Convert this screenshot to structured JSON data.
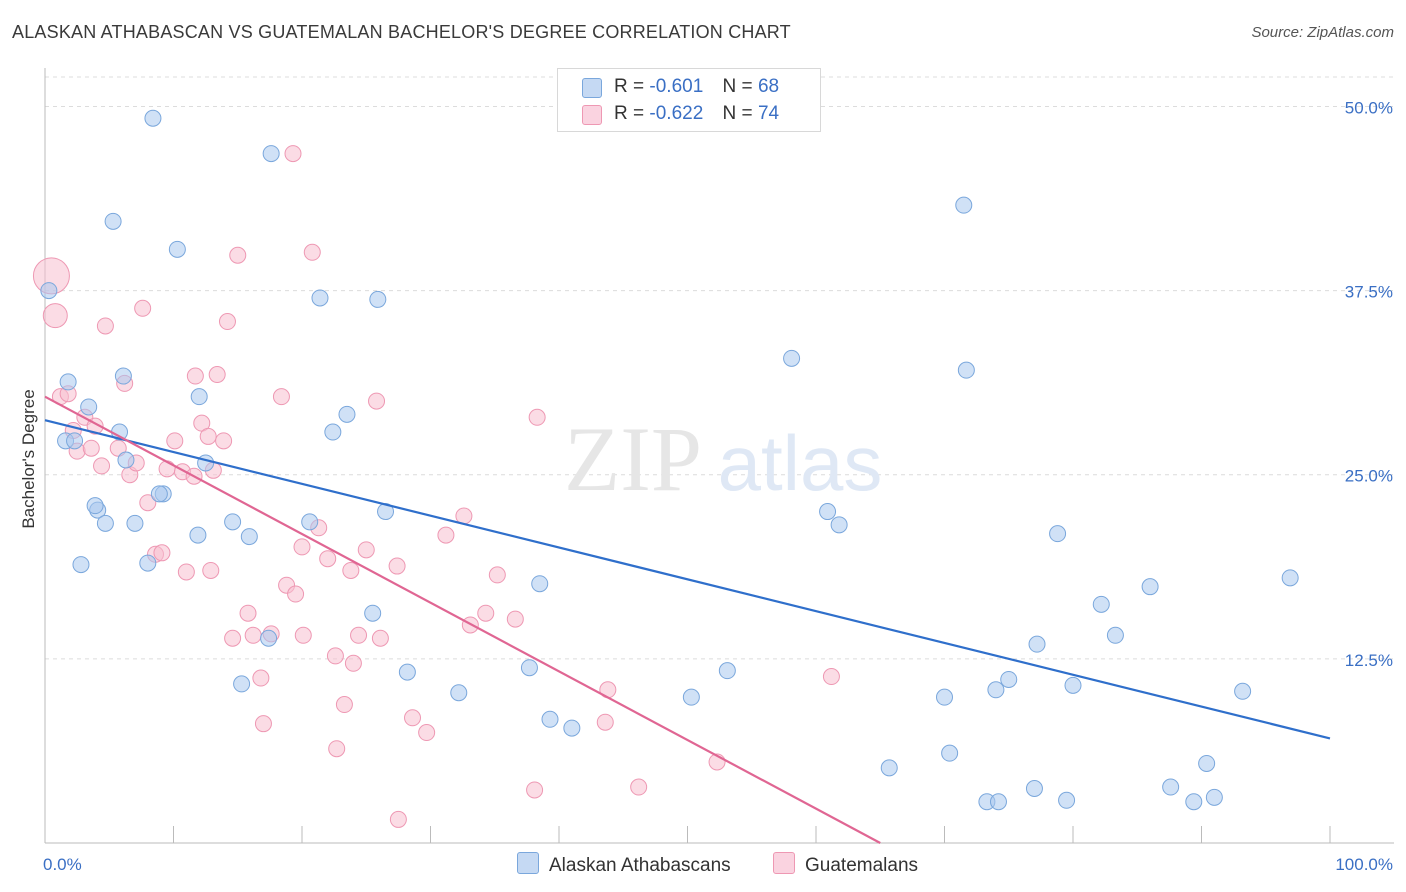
{
  "title": "ALASKAN ATHABASCAN VS GUATEMALAN BACHELOR'S DEGREE CORRELATION CHART",
  "source": "Source: ZipAtlas.com",
  "watermark": {
    "zip": "ZIP",
    "atlas": "atlas"
  },
  "colors": {
    "blue_fill": "#a9c8ee",
    "blue_stroke": "#7aa7dc",
    "blue_line": "#2f6fcb",
    "pink_fill": "#f7bfd0",
    "pink_stroke": "#ee98b3",
    "pink_line": "#e06693",
    "axis_label": "#3a6fc4",
    "grid": "#dcdcdc"
  },
  "legend": {
    "rows": [
      {
        "r_label": "R =",
        "r_value": "-0.601",
        "n_label": "N =",
        "n_value": "68"
      },
      {
        "r_label": "R =",
        "r_value": "-0.622",
        "n_label": "N =",
        "n_value": "74"
      }
    ]
  },
  "bottom_legend": {
    "series1": "Alaskan Athabascans",
    "series2": "Guatemalans"
  },
  "chart_data": {
    "type": "scatter",
    "ylabel": "Bachelor's Degree",
    "xlim": [
      0,
      100
    ],
    "ylim": [
      0,
      52
    ],
    "x_tick_labels": [
      "0.0%",
      "100.0%"
    ],
    "y_ticks": [
      12.5,
      25.0,
      37.5,
      50.0
    ],
    "y_tick_labels": [
      "12.5%",
      "25.0%",
      "37.5%",
      "50.0%"
    ],
    "grid": true,
    "series": [
      {
        "name": "Alaskan Athabascans",
        "trend": {
          "x": [
            0,
            100
          ],
          "y": [
            28.7,
            7.1
          ]
        },
        "points": [
          [
            0.3,
            37.5,
            14
          ],
          [
            1.8,
            31.3,
            14
          ],
          [
            3.4,
            29.6,
            14
          ],
          [
            1.6,
            27.3,
            14
          ],
          [
            2.3,
            27.3,
            14
          ],
          [
            5.8,
            27.9,
            14
          ],
          [
            8.4,
            49.2,
            14
          ],
          [
            5.3,
            42.2,
            14
          ],
          [
            10.3,
            40.3,
            14
          ],
          [
            7.0,
            21.7,
            14
          ],
          [
            4.1,
            22.6,
            14
          ],
          [
            4.7,
            21.7,
            14
          ],
          [
            6.3,
            26.0,
            14
          ],
          [
            9.2,
            23.7,
            14
          ],
          [
            8.9,
            23.7,
            14
          ],
          [
            8.0,
            19.0,
            14
          ],
          [
            12.0,
            30.3,
            14
          ],
          [
            11.9,
            20.9,
            14
          ],
          [
            14.6,
            21.8,
            14
          ],
          [
            15.9,
            20.8,
            14
          ],
          [
            12.5,
            25.8,
            14
          ],
          [
            17.6,
            46.8,
            14
          ],
          [
            21.4,
            37.0,
            14
          ],
          [
            25.9,
            36.9,
            14
          ],
          [
            2.8,
            18.9,
            14
          ],
          [
            6.1,
            31.7,
            14
          ],
          [
            3.9,
            22.9,
            14
          ],
          [
            22.4,
            27.9,
            14
          ],
          [
            23.5,
            29.1,
            14
          ],
          [
            26.5,
            22.5,
            14
          ],
          [
            20.6,
            21.8,
            14
          ],
          [
            17.4,
            13.9,
            14
          ],
          [
            15.3,
            10.8,
            14
          ],
          [
            25.5,
            15.6,
            14
          ],
          [
            28.2,
            11.6,
            14
          ],
          [
            32.2,
            10.2,
            14
          ],
          [
            37.7,
            11.9,
            14
          ],
          [
            38.5,
            17.6,
            14
          ],
          [
            39.3,
            8.4,
            14
          ],
          [
            41.0,
            7.8,
            14
          ],
          [
            50.3,
            9.9,
            14
          ],
          [
            53.1,
            11.7,
            14
          ],
          [
            58.1,
            32.9,
            14
          ],
          [
            60.9,
            22.5,
            14
          ],
          [
            61.8,
            21.6,
            14
          ],
          [
            71.5,
            43.3,
            14
          ],
          [
            71.7,
            32.1,
            14
          ],
          [
            65.7,
            5.1,
            14
          ],
          [
            70.0,
            9.9,
            14
          ],
          [
            70.4,
            6.1,
            14
          ],
          [
            73.3,
            2.8,
            14
          ],
          [
            74.2,
            2.8,
            14
          ],
          [
            74.0,
            10.4,
            14
          ],
          [
            75.0,
            11.1,
            14
          ],
          [
            77.2,
            13.5,
            14
          ],
          [
            77.0,
            3.7,
            14
          ],
          [
            78.8,
            21.0,
            14
          ],
          [
            79.5,
            2.9,
            14
          ],
          [
            80.0,
            10.7,
            14
          ],
          [
            82.2,
            16.2,
            14
          ],
          [
            83.3,
            14.1,
            14
          ],
          [
            86.0,
            17.4,
            14
          ],
          [
            87.6,
            3.8,
            14
          ],
          [
            89.4,
            2.8,
            14
          ],
          [
            90.4,
            5.4,
            14
          ],
          [
            91.0,
            3.1,
            14
          ],
          [
            93.2,
            10.3,
            14
          ],
          [
            96.9,
            18.0,
            14
          ]
        ]
      },
      {
        "name": "Guatemalans",
        "trend": {
          "x": [
            0,
            65
          ],
          "y": [
            30.3,
            0
          ]
        },
        "points": [
          [
            0.5,
            38.5,
            34
          ],
          [
            0.8,
            35.8,
            22
          ],
          [
            1.2,
            30.3,
            14
          ],
          [
            1.8,
            30.5,
            14
          ],
          [
            2.2,
            28.0,
            14
          ],
          [
            2.5,
            26.6,
            14
          ],
          [
            3.1,
            28.9,
            14
          ],
          [
            3.6,
            26.8,
            14
          ],
          [
            3.9,
            28.3,
            14
          ],
          [
            4.4,
            25.6,
            14
          ],
          [
            4.7,
            35.1,
            14
          ],
          [
            5.7,
            26.8,
            14
          ],
          [
            6.2,
            31.2,
            14
          ],
          [
            6.6,
            25.0,
            14
          ],
          [
            7.1,
            25.8,
            14
          ],
          [
            7.6,
            36.3,
            14
          ],
          [
            8.0,
            23.1,
            14
          ],
          [
            8.6,
            19.6,
            14
          ],
          [
            9.1,
            19.7,
            14
          ],
          [
            9.5,
            25.4,
            14
          ],
          [
            10.1,
            27.3,
            14
          ],
          [
            10.7,
            25.2,
            14
          ],
          [
            11.0,
            18.4,
            14
          ],
          [
            11.6,
            24.9,
            14
          ],
          [
            11.7,
            31.7,
            14
          ],
          [
            12.2,
            28.5,
            14
          ],
          [
            12.7,
            27.6,
            14
          ],
          [
            12.9,
            18.5,
            14
          ],
          [
            13.1,
            25.3,
            14
          ],
          [
            13.4,
            31.8,
            14
          ],
          [
            13.9,
            27.3,
            14
          ],
          [
            14.6,
            13.9,
            14
          ],
          [
            15.0,
            39.9,
            14
          ],
          [
            14.2,
            35.4,
            14
          ],
          [
            15.8,
            15.6,
            14
          ],
          [
            16.2,
            14.1,
            14
          ],
          [
            16.8,
            11.2,
            14
          ],
          [
            17.0,
            8.1,
            14
          ],
          [
            17.6,
            14.2,
            14
          ],
          [
            18.4,
            30.3,
            14
          ],
          [
            18.8,
            17.5,
            14
          ],
          [
            19.5,
            16.9,
            14
          ],
          [
            20.1,
            14.1,
            14
          ],
          [
            20.8,
            40.1,
            14
          ],
          [
            21.3,
            21.4,
            14
          ],
          [
            22.0,
            19.3,
            14
          ],
          [
            22.6,
            12.7,
            14
          ],
          [
            23.3,
            9.4,
            14
          ],
          [
            23.8,
            18.5,
            14
          ],
          [
            24.4,
            14.1,
            14
          ],
          [
            25.0,
            19.9,
            14
          ],
          [
            25.8,
            30.0,
            14
          ],
          [
            26.1,
            13.9,
            14
          ],
          [
            27.4,
            18.8,
            14
          ],
          [
            28.6,
            8.5,
            14
          ],
          [
            29.7,
            7.5,
            14
          ],
          [
            31.2,
            20.9,
            14
          ],
          [
            32.6,
            22.2,
            14
          ],
          [
            33.1,
            14.8,
            14
          ],
          [
            34.3,
            15.6,
            14
          ],
          [
            35.2,
            18.2,
            14
          ],
          [
            36.6,
            15.2,
            14
          ],
          [
            38.1,
            3.6,
            14
          ],
          [
            38.3,
            28.9,
            14
          ],
          [
            43.8,
            10.4,
            14
          ],
          [
            43.6,
            8.2,
            14
          ],
          [
            46.2,
            3.8,
            14
          ],
          [
            52.3,
            5.5,
            14
          ],
          [
            61.2,
            11.3,
            14
          ],
          [
            22.7,
            6.4,
            14
          ],
          [
            27.5,
            1.6,
            14
          ],
          [
            19.3,
            46.8,
            14
          ],
          [
            24.0,
            12.2,
            14
          ],
          [
            20.0,
            20.1,
            14
          ]
        ]
      }
    ]
  }
}
